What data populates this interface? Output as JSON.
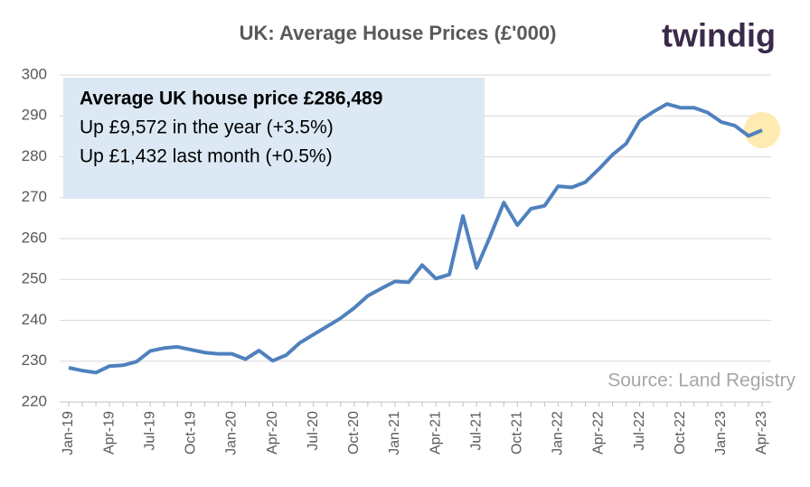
{
  "chart_data": {
    "type": "line",
    "title": "UK: Average House Prices (£'000)",
    "brand": "twindig",
    "source": "Source: Land Registry",
    "info_box": {
      "headline": "Average UK house price £286,489",
      "lines": [
        "Up £9,572 in the year (+3.5%)",
        "Up £1,432 last month (+0.5%)"
      ]
    },
    "categories": [
      "Jan-19",
      null,
      null,
      "Apr-19",
      null,
      null,
      "Jul-19",
      null,
      null,
      "Oct-19",
      null,
      null,
      "Jan-20",
      null,
      null,
      "Apr-20",
      null,
      null,
      "Jul-20",
      null,
      null,
      "Oct-20",
      null,
      null,
      "Jan-21",
      null,
      null,
      "Apr-21",
      null,
      null,
      "Jul-21",
      null,
      null,
      "Oct-21",
      null,
      null,
      "Jan-22",
      null,
      null,
      "Apr-22",
      null,
      null,
      "Jul-22",
      null,
      null,
      "Oct-22",
      null,
      null,
      "Jan-23",
      null,
      null,
      "Apr-23"
    ],
    "series": [
      {
        "name": "Average house price",
        "color": "#4f81bd",
        "values": [
          228.4,
          227.7,
          227.2,
          228.8,
          229.0,
          229.9,
          232.5,
          233.2,
          233.5,
          232.8,
          232.1,
          231.8,
          231.8,
          230.5,
          232.6,
          230.1,
          231.5,
          234.5,
          236.5,
          238.5,
          240.5,
          243.0,
          246.0,
          247.8,
          249.5,
          249.3,
          253.5,
          250.2,
          251.2,
          265.5,
          252.8,
          260.5,
          268.8,
          263.3,
          267.3,
          268.0,
          272.8,
          272.5,
          273.8,
          277.0,
          280.5,
          283.2,
          288.8,
          291.0,
          292.9,
          292.0,
          292.0,
          290.8,
          288.5,
          287.6,
          285.1,
          286.5
        ]
      }
    ],
    "ylim": [
      220,
      300
    ],
    "yticks": [
      220,
      230,
      240,
      250,
      260,
      270,
      280,
      290,
      300
    ],
    "grid": true
  }
}
